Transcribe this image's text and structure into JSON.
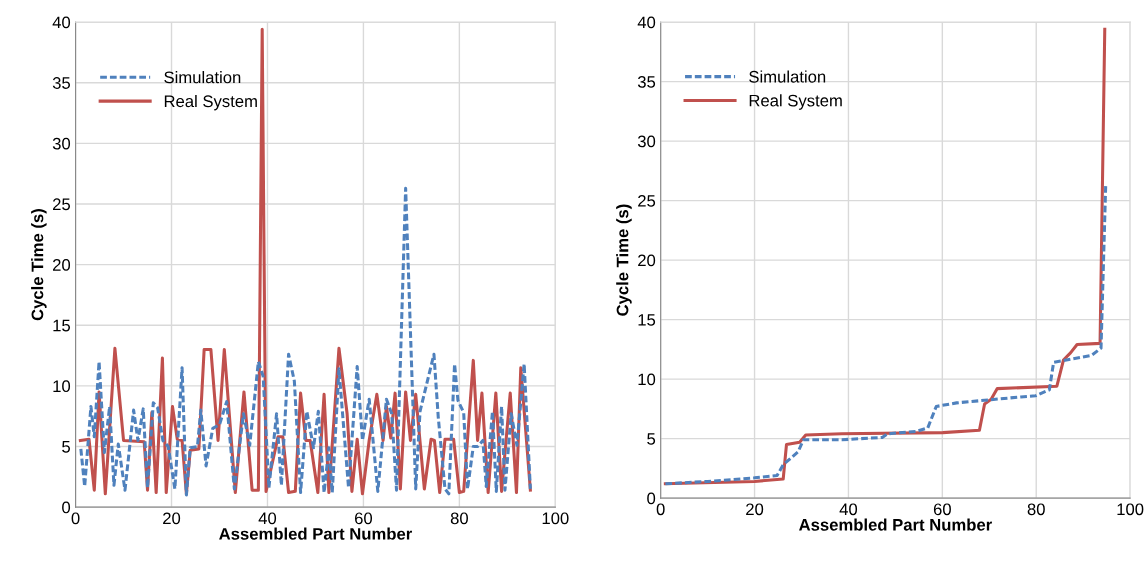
{
  "chart_data": [
    {
      "type": "line",
      "xlabel": "Assembled Part Number",
      "ylabel": "Cycle Time (s)",
      "xlim": [
        0,
        100
      ],
      "xticks": [
        0,
        20,
        40,
        60,
        80,
        100
      ],
      "ylim": [
        0,
        40
      ],
      "yticks": [
        0,
        5,
        10,
        15,
        20,
        25,
        30,
        35,
        40
      ],
      "grid": true,
      "legend": "top left",
      "marker": "none",
      "series": [
        {
          "name": "Simulation",
          "color": "#4f81bd",
          "line_style": "dashed",
          "x": [
            1.1,
            1.9,
            3.2,
            3.9,
            4.9,
            6.0,
            7.1,
            8.0,
            8.9,
            10.3,
            12.1,
            13.0,
            14.1,
            15.0,
            16.2,
            17.1,
            18.2,
            19.3,
            20.7,
            22.2,
            23.1,
            23.9,
            25.4,
            26.1,
            27.2,
            28.6,
            30.0,
            31.5,
            33.1,
            35.0,
            36.3,
            38.1,
            39.1,
            40.3,
            41.9,
            42.9,
            44.4,
            45.6,
            46.9,
            48.2,
            49.6,
            50.6,
            51.8,
            52.8,
            53.5,
            54.9,
            56.9,
            58.7,
            59.8,
            61.2,
            63.0,
            64.8,
            65.9,
            66.9,
            68.8,
            70.9,
            71.8,
            74.7,
            75.6,
            77.0,
            77.8,
            79.0,
            79.7,
            80.9,
            81.7,
            82.9,
            83.8,
            84.9,
            85.6,
            86.9,
            87.7,
            88.8,
            89.5,
            90.8,
            92.0,
            93.5,
            94.8
          ],
          "values": [
            4.8,
            1.7,
            8.3,
            5.8,
            12.0,
            4.5,
            8.3,
            1.8,
            5.2,
            1.4,
            8.0,
            5.5,
            8.1,
            1.6,
            8.6,
            8.2,
            5.5,
            5.0,
            1.5,
            11.5,
            1.0,
            4.9,
            5.0,
            8.0,
            3.4,
            6.5,
            6.8,
            8.7,
            1.5,
            7.7,
            5.1,
            12.0,
            10.8,
            1.6,
            7.7,
            1.8,
            12.6,
            10.4,
            1.2,
            7.9,
            4.9,
            7.9,
            1.2,
            4.9,
            1.2,
            11.4,
            1.6,
            11.6,
            5.5,
            8.9,
            1.3,
            8.9,
            7.7,
            1.4,
            26.3,
            1.5,
            7.9,
            12.6,
            7.4,
            1.5,
            1.1,
            11.8,
            8.8,
            7.8,
            1.5,
            5.0,
            5.0,
            5.5,
            1.7,
            7.9,
            1.3,
            8.3,
            1.4,
            7.7,
            5.1,
            11.8,
            1.5
          ]
        },
        {
          "name": "Real System",
          "color": "#c0504d",
          "line_style": "solid",
          "x": [
            1.0,
            2.8,
            3.9,
            4.9,
            6.2,
            8.2,
            10.0,
            14.3,
            15.0,
            15.9,
            16.8,
            18.1,
            18.9,
            20.2,
            21.2,
            22.2,
            23.1,
            23.9,
            25.7,
            26.8,
            28.2,
            29.7,
            31.0,
            33.3,
            35.1,
            36.8,
            38.1,
            38.9,
            39.7,
            42.2,
            43.2,
            44.4,
            45.8,
            46.9,
            48.0,
            48.9,
            50.5,
            51.8,
            52.8,
            54.9,
            56.6,
            57.6,
            58.7,
            59.8,
            61.2,
            62.8,
            64.1,
            64.8,
            65.7,
            66.6,
            67.7,
            68.8,
            69.8,
            70.9,
            72.7,
            74.1,
            74.8,
            75.9,
            77.0,
            78.8,
            80.0,
            80.9,
            82.9,
            83.8,
            84.7,
            86.0,
            87.6,
            88.8,
            90.6,
            91.9,
            92.8,
            94.8
          ],
          "values": [
            5.5,
            5.6,
            1.4,
            9.5,
            1.1,
            13.1,
            5.5,
            5.4,
            1.4,
            7.8,
            1.2,
            12.3,
            1.2,
            8.3,
            5.6,
            5.5,
            1.1,
            4.7,
            4.8,
            13.0,
            13.0,
            5.5,
            13.0,
            1.2,
            9.5,
            1.4,
            1.4,
            39.4,
            1.3,
            5.8,
            5.8,
            1.2,
            1.3,
            9.4,
            5.5,
            5.5,
            1.2,
            9.3,
            1.2,
            13.1,
            7.7,
            1.3,
            5.6,
            1.1,
            5.5,
            9.3,
            5.5,
            8.3,
            5.7,
            9.4,
            1.5,
            9.5,
            5.5,
            9.3,
            1.5,
            5.6,
            5.5,
            1.2,
            5.6,
            5.6,
            1.2,
            1.3,
            12.1,
            5.5,
            9.4,
            1.2,
            9.4,
            1.3,
            9.4,
            1.2,
            11.5,
            1.4
          ]
        }
      ]
    },
    {
      "type": "line",
      "xlabel": "Assembled Part Number",
      "ylabel": "Cycle Time (s)",
      "xlim": [
        0,
        100
      ],
      "xticks": [
        0,
        20,
        40,
        60,
        80,
        100
      ],
      "ylim": [
        0,
        40
      ],
      "yticks": [
        0,
        5,
        10,
        15,
        20,
        25,
        30,
        35,
        40
      ],
      "grid": true,
      "legend": "top left",
      "marker": "none",
      "series": [
        {
          "name": "Simulation",
          "color": "#4f81bd",
          "line_style": "dashed",
          "x": [
            1,
            10,
            20,
            24.8,
            26.1,
            29.3,
            30.4,
            38.6,
            47.2,
            48.3,
            54.4,
            56.9,
            58.7,
            63.0,
            76.7,
            79.9,
            82.8,
            83.7,
            91.8,
            93.8,
            94.8
          ],
          "values": [
            1.2,
            1.4,
            1.7,
            1.9,
            2.8,
            3.9,
            4.9,
            4.9,
            5.1,
            5.4,
            5.6,
            5.9,
            7.7,
            8.0,
            8.5,
            8.6,
            9.1,
            11.4,
            12.0,
            12.6,
            26.3
          ]
        },
        {
          "name": "Real System",
          "color": "#c0504d",
          "line_style": "solid",
          "x": [
            1,
            20,
            26.1,
            26.8,
            29.6,
            30.9,
            38.6,
            60.1,
            67.9,
            69.0,
            70.4,
            71.7,
            84.4,
            85.8,
            87.3,
            88.7,
            93.6,
            94.6
          ],
          "values": [
            1.2,
            1.4,
            1.6,
            4.5,
            4.7,
            5.3,
            5.4,
            5.5,
            5.7,
            7.9,
            8.3,
            9.2,
            9.4,
            11.6,
            12.2,
            12.9,
            13.0,
            39.4
          ]
        }
      ]
    }
  ]
}
